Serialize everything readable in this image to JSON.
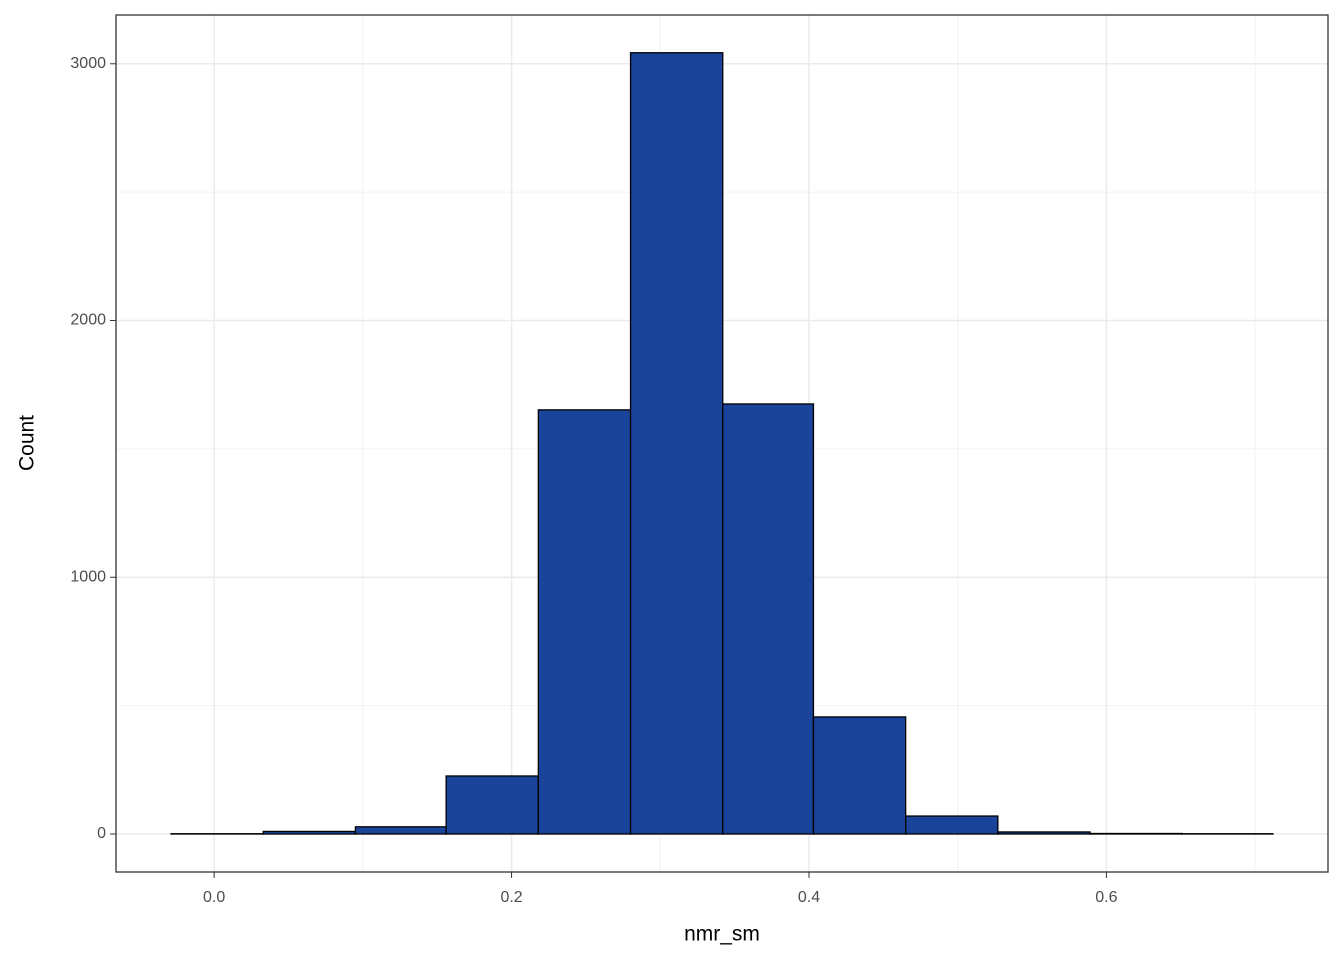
{
  "chart_data": {
    "type": "histogram",
    "x_label": "nmr_sm",
    "y_label": "Count",
    "bins": [
      -0.029,
      0.033,
      0.095,
      0.156,
      0.218,
      0.28,
      0.342,
      0.403,
      0.465,
      0.527,
      0.589,
      0.651,
      0.712
    ],
    "values": [
      1,
      10,
      28,
      226,
      1652,
      3043,
      1675,
      456,
      70,
      8,
      2,
      1
    ],
    "color": "#19449a",
    "edge_color": "#000000",
    "xlim": [
      -0.066,
      0.749
    ],
    "ylim": [
      -148,
      3190
    ],
    "xticks": [
      {
        "value": 0,
        "label": "0.0"
      },
      0.2,
      0.4,
      0.6
    ],
    "yticks": [
      0,
      1000,
      2000,
      3000
    ],
    "xminor": [
      0.1,
      0.3,
      0.5,
      0.7
    ],
    "yminor": [
      500,
      1500,
      2500
    ],
    "grid": true
  }
}
